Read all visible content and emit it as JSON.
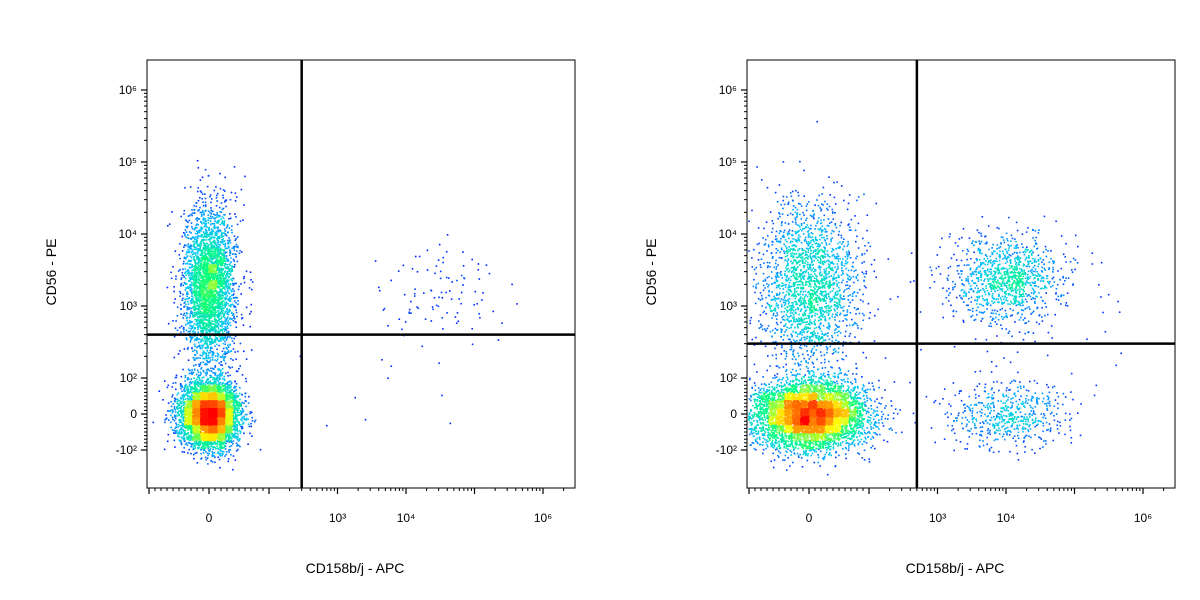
{
  "chart_data": [
    {
      "type": "scatter",
      "subtype": "flow-cytometry-density-dot-plot",
      "title": "",
      "xlabel": "CD158b/j - APC",
      "ylabel": "CD56 - PE",
      "x_scale": "biexponential",
      "y_scale": "biexponential",
      "xlim": [
        -300,
        3000000
      ],
      "ylim": [
        -300,
        2000000
      ],
      "x_tick_labels": [
        "0",
        "10³",
        "10⁴",
        "10⁶"
      ],
      "y_tick_labels": [
        "10⁶",
        "10⁵",
        "10⁴",
        "10³",
        "10²",
        "0",
        "-10²"
      ],
      "gates": {
        "x": 300,
        "y": 400
      },
      "colormap": [
        "#0000ff",
        "#00bfff",
        "#00ff80",
        "#ffff00",
        "#ff8000",
        "#ff0000"
      ],
      "populations": [
        {
          "x_center": 0,
          "y_center": 0,
          "relative_count": 0.62,
          "label": ""
        },
        {
          "x_center": 0,
          "y_center": 2000,
          "relative_count": 0.35,
          "label": ""
        },
        {
          "x_center": 30000,
          "y_center": 1500,
          "relative_count": 0.01,
          "label": ""
        }
      ],
      "quadrant_fractions": {
        "upper_left": 0.37,
        "upper_right": 0.002,
        "lower_left": 0.62,
        "lower_right": 0.003
      }
    },
    {
      "type": "scatter",
      "subtype": "flow-cytometry-density-dot-plot",
      "title": "",
      "xlabel": "CD158b/j - APC",
      "ylabel": "CD56 - PE",
      "x_scale": "biexponential",
      "y_scale": "biexponential",
      "xlim": [
        -300,
        3000000
      ],
      "ylim": [
        -300,
        2000000
      ],
      "x_tick_labels": [
        "0",
        "10³",
        "10⁴",
        "10⁶"
      ],
      "y_tick_labels": [
        "10⁶",
        "10⁵",
        "10⁴",
        "10³",
        "10²",
        "0",
        "-10²"
      ],
      "gates": {
        "x": 500,
        "y": 300
      },
      "colormap": [
        "#0000ff",
        "#00bfff",
        "#00ff80",
        "#ffff00",
        "#ff8000",
        "#ff0000"
      ],
      "populations": [
        {
          "x_center": 0,
          "y_center": 0,
          "relative_count": 0.6,
          "label": ""
        },
        {
          "x_center": 0,
          "y_center": 2000,
          "relative_count": 0.22,
          "label": ""
        },
        {
          "x_center": 10000,
          "y_center": 2500,
          "relative_count": 0.12,
          "label": ""
        },
        {
          "x_center": 10000,
          "y_center": 0,
          "relative_count": 0.06,
          "label": ""
        }
      ],
      "quadrant_fractions": {
        "upper_left": 0.23,
        "upper_right": 0.11,
        "lower_left": 0.6,
        "lower_right": 0.06
      }
    }
  ]
}
